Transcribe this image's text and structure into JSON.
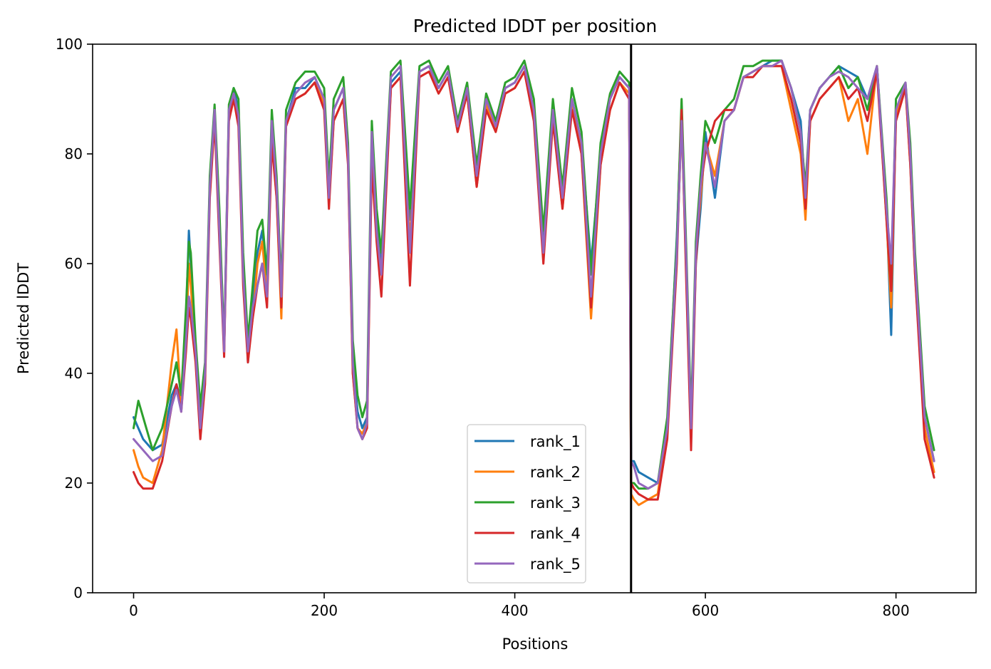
{
  "chart_data": {
    "type": "line",
    "title": "Predicted lDDT per position",
    "xlabel": "Positions",
    "ylabel": "Predicted lDDT",
    "xlim": [
      -43,
      884
    ],
    "ylim": [
      0,
      100
    ],
    "xticks": [
      0,
      200,
      400,
      600,
      800
    ],
    "yticks": [
      0,
      20,
      40,
      60,
      80,
      100
    ],
    "grid": false,
    "legend_position": "lower center",
    "vertical_line": {
      "x": 522,
      "color": "#000000"
    },
    "x": [
      0,
      5,
      10,
      20,
      30,
      40,
      45,
      50,
      55,
      58,
      60,
      65,
      70,
      75,
      80,
      85,
      90,
      95,
      100,
      105,
      110,
      115,
      120,
      125,
      130,
      135,
      140,
      145,
      150,
      155,
      160,
      170,
      180,
      190,
      200,
      205,
      210,
      220,
      225,
      230,
      235,
      240,
      245,
      250,
      255,
      260,
      270,
      280,
      290,
      300,
      310,
      320,
      330,
      340,
      350,
      360,
      370,
      380,
      390,
      400,
      410,
      420,
      430,
      440,
      450,
      460,
      470,
      480,
      490,
      500,
      510,
      520,
      522,
      525,
      530,
      540,
      550,
      560,
      570,
      575,
      580,
      585,
      590,
      595,
      600,
      610,
      620,
      630,
      640,
      650,
      660,
      670,
      680,
      690,
      700,
      705,
      710,
      720,
      730,
      740,
      750,
      760,
      770,
      780,
      790,
      795,
      800,
      810,
      815,
      820,
      830,
      840
    ],
    "series": [
      {
        "name": "rank_1",
        "color": "#1f77b4",
        "values": [
          32,
          30,
          28,
          26,
          27,
          36,
          38,
          35,
          50,
          66,
          60,
          45,
          32,
          40,
          75,
          88,
          68,
          44,
          88,
          92,
          88,
          60,
          42,
          52,
          62,
          66,
          56,
          85,
          74,
          54,
          86,
          92,
          92,
          94,
          90,
          72,
          88,
          92,
          80,
          42,
          33,
          30,
          32,
          82,
          68,
          60,
          93,
          95,
          68,
          95,
          96,
          92,
          95,
          85,
          92,
          75,
          90,
          85,
          92,
          93,
          96,
          88,
          64,
          88,
          72,
          90,
          82,
          60,
          80,
          90,
          94,
          92,
          24,
          24,
          22,
          21,
          20,
          30,
          65,
          88,
          60,
          30,
          60,
          70,
          84,
          72,
          86,
          88,
          94,
          95,
          96,
          97,
          97,
          92,
          86,
          72,
          88,
          92,
          94,
          96,
          95,
          94,
          90,
          96,
          70,
          47,
          88,
          92,
          80,
          60,
          32,
          24
        ]
      },
      {
        "name": "rank_2",
        "color": "#ff7f0e",
        "values": [
          26,
          23,
          21,
          20,
          26,
          42,
          48,
          34,
          46,
          60,
          56,
          44,
          30,
          40,
          74,
          87,
          66,
          44,
          87,
          90,
          86,
          58,
          43,
          50,
          60,
          64,
          54,
          84,
          72,
          50,
          86,
          90,
          91,
          93,
          89,
          71,
          86,
          90,
          79,
          40,
          30,
          29,
          31,
          80,
          66,
          58,
          92,
          94,
          64,
          94,
          95,
          91,
          94,
          84,
          91,
          74,
          89,
          84,
          91,
          92,
          95,
          87,
          62,
          87,
          70,
          89,
          80,
          50,
          78,
          88,
          93,
          91,
          18,
          17,
          16,
          17,
          18,
          30,
          62,
          86,
          58,
          28,
          62,
          72,
          82,
          76,
          86,
          88,
          94,
          95,
          96,
          96,
          96,
          88,
          80,
          68,
          86,
          90,
          92,
          94,
          86,
          90,
          80,
          96,
          68,
          52,
          87,
          92,
          78,
          58,
          30,
          22
        ]
      },
      {
        "name": "rank_3",
        "color": "#2ca02c",
        "values": [
          30,
          35,
          32,
          26,
          30,
          38,
          42,
          36,
          52,
          64,
          62,
          46,
          34,
          42,
          76,
          89,
          70,
          45,
          89,
          92,
          90,
          62,
          46,
          56,
          66,
          68,
          58,
          88,
          76,
          56,
          88,
          93,
          95,
          95,
          92,
          75,
          90,
          94,
          82,
          46,
          36,
          32,
          35,
          86,
          70,
          62,
          95,
          97,
          70,
          96,
          97,
          93,
          96,
          86,
          93,
          78,
          91,
          86,
          93,
          94,
          97,
          90,
          66,
          90,
          74,
          92,
          84,
          58,
          82,
          91,
          95,
          93,
          20,
          20,
          19,
          19,
          20,
          32,
          64,
          90,
          62,
          32,
          64,
          76,
          86,
          82,
          88,
          90,
          96,
          96,
          97,
          97,
          97,
          92,
          84,
          74,
          88,
          92,
          94,
          96,
          92,
          94,
          88,
          96,
          72,
          56,
          90,
          93,
          82,
          62,
          34,
          26
        ]
      },
      {
        "name": "rank_4",
        "color": "#d62728",
        "values": [
          22,
          20,
          19,
          19,
          24,
          34,
          38,
          33,
          44,
          52,
          50,
          42,
          28,
          38,
          72,
          86,
          64,
          43,
          86,
          90,
          85,
          56,
          42,
          50,
          56,
          60,
          52,
          82,
          72,
          52,
          85,
          90,
          91,
          93,
          88,
          70,
          86,
          90,
          78,
          40,
          30,
          28,
          30,
          78,
          64,
          54,
          92,
          94,
          56,
          94,
          95,
          91,
          94,
          84,
          91,
          74,
          88,
          84,
          91,
          92,
          95,
          86,
          60,
          86,
          70,
          88,
          80,
          52,
          78,
          88,
          93,
          90,
          20,
          19,
          18,
          17,
          17,
          28,
          60,
          88,
          56,
          26,
          60,
          74,
          80,
          86,
          88,
          88,
          94,
          94,
          96,
          96,
          96,
          90,
          82,
          70,
          86,
          90,
          92,
          94,
          90,
          92,
          86,
          95,
          68,
          55,
          86,
          92,
          78,
          58,
          28,
          21
        ]
      },
      {
        "name": "rank_5",
        "color": "#9467bd",
        "values": [
          28,
          27,
          26,
          24,
          25,
          34,
          37,
          33,
          46,
          54,
          52,
          44,
          30,
          40,
          74,
          88,
          66,
          44,
          88,
          91,
          87,
          58,
          44,
          52,
          56,
          60,
          54,
          86,
          74,
          54,
          86,
          91,
          93,
          94,
          90,
          72,
          88,
          92,
          80,
          42,
          30,
          28,
          31,
          84,
          66,
          58,
          94,
          96,
          62,
          95,
          96,
          92,
          95,
          85,
          92,
          76,
          90,
          85,
          92,
          93,
          96,
          88,
          62,
          88,
          72,
          90,
          82,
          54,
          80,
          90,
          94,
          92,
          24,
          23,
          20,
          19,
          20,
          30,
          62,
          86,
          60,
          30,
          62,
          74,
          82,
          74,
          86,
          88,
          94,
          95,
          96,
          96,
          97,
          92,
          84,
          72,
          88,
          92,
          94,
          95,
          94,
          92,
          90,
          96,
          70,
          60,
          88,
          93,
          80,
          60,
          32,
          24
        ]
      }
    ]
  }
}
